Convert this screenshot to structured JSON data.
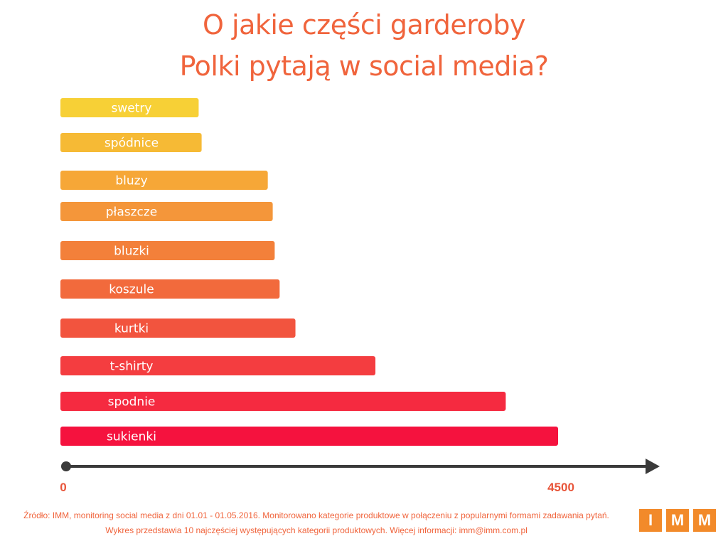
{
  "title": {
    "line1": "O jakie części garderoby",
    "line2": "Polki pytają w social media?"
  },
  "chart_data": {
    "type": "bar",
    "orientation": "horizontal",
    "categories": [
      "swetry",
      "spódnice",
      "bluzy",
      "płaszcze",
      "bluzki",
      "koszule",
      "kurtki",
      "t-shirty",
      "spodnie",
      "sukienki"
    ],
    "values": [
      1400,
      1430,
      2100,
      2150,
      2170,
      2220,
      2380,
      3190,
      4510,
      5040
    ],
    "colors": [
      "#f7d036",
      "#f6ba35",
      "#f6a737",
      "#f4963a",
      "#f3803a",
      "#f26a3c",
      "#f2543e",
      "#f43d40",
      "#f52a40",
      "#f5123e"
    ],
    "x_ticks": [
      "0",
      "4500"
    ],
    "xlim": [
      0,
      6000
    ],
    "axis_color": "#3a3a3a",
    "tick_color": "#e8553a"
  },
  "footer": {
    "line1": "Źródło: IMM, monitoring social media z dni 01.01 - 01.05.2016. Monitorowano kategorie produktowe w połączeniu z popularnymi formami zadawania pytań.",
    "line2": "Wykres przedstawia 10 najczęściej występujących kategorii produktowych. Więcej informacji: imm@imm.com.pl"
  },
  "logo": {
    "letters": [
      "I",
      "M",
      "M"
    ],
    "color": "#f28a2a"
  }
}
